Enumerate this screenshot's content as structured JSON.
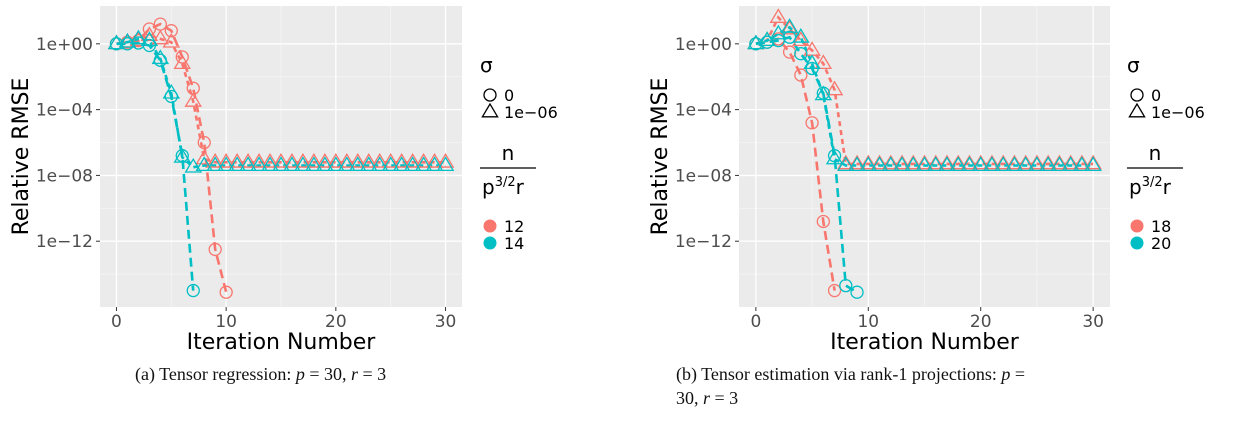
{
  "chart_data": [
    {
      "type": "line",
      "caption": "(a) Tensor regression: p = 30, r = 3",
      "xlabel": "Iteration Number",
      "ylabel": "Relative RMSE",
      "x_ticks": [
        "0",
        "10",
        "20",
        "30"
      ],
      "y_ticks": [
        "1e+00",
        "1e−04",
        "1e−08",
        "1e−12"
      ],
      "y_scale": "log10",
      "xlim": [
        -1.5,
        31.5
      ],
      "ylim_log10": [
        -16.0,
        2.3
      ],
      "grid": true,
      "background": "#ebebeb",
      "legend_shape": {
        "title": "σ",
        "entries": [
          "0",
          "1e−06"
        ]
      },
      "legend_color": {
        "title_num": "n",
        "title_den_base": "p",
        "title_den_sup": "3/2",
        "title_den_tail": "r",
        "entries": [
          "12",
          "14"
        ]
      },
      "series": [
        {
          "name": "12",
          "sigma": "0",
          "color": "#f8766d",
          "marker": "circle",
          "x": [
            0,
            1,
            2,
            3,
            4,
            5,
            6,
            7,
            8,
            9,
            10
          ],
          "log10_y": [
            0.0,
            0.1,
            0.2,
            0.9,
            1.2,
            0.8,
            -0.8,
            -2.7,
            -6.0,
            -12.5,
            -15.1
          ]
        },
        {
          "name": "12",
          "sigma": "1e−06",
          "color": "#f8766d",
          "marker": "triangle",
          "x": [
            0,
            1,
            2,
            3,
            4,
            5,
            6,
            7,
            8,
            9,
            10,
            11,
            12,
            13,
            14,
            15,
            16,
            17,
            18,
            19,
            20,
            21,
            22,
            23,
            24,
            25,
            26,
            27,
            28,
            29,
            30
          ],
          "log10_y": [
            0.0,
            0.1,
            0.2,
            0.5,
            0.3,
            0.1,
            -1.2,
            -3.5,
            -7.0,
            -7.2,
            -7.2,
            -7.2,
            -7.2,
            -7.2,
            -7.2,
            -7.2,
            -7.2,
            -7.2,
            -7.2,
            -7.2,
            -7.2,
            -7.2,
            -7.2,
            -7.2,
            -7.2,
            -7.2,
            -7.2,
            -7.2,
            -7.2,
            -7.2,
            -7.2
          ]
        },
        {
          "name": "14",
          "sigma": "0",
          "color": "#00bfc4",
          "marker": "circle",
          "x": [
            0,
            1,
            2,
            3,
            4,
            5,
            6,
            7
          ],
          "log10_y": [
            0.0,
            0.0,
            0.05,
            -0.1,
            -1.0,
            -3.2,
            -6.8,
            -15.0
          ]
        },
        {
          "name": "14",
          "sigma": "1e−06",
          "color": "#00bfc4",
          "marker": "triangle",
          "x": [
            0,
            1,
            2,
            3,
            4,
            5,
            6,
            7,
            8,
            9,
            10,
            11,
            12,
            13,
            14,
            15,
            16,
            17,
            18,
            19,
            20,
            21,
            22,
            23,
            24,
            25,
            26,
            27,
            28,
            29,
            30
          ],
          "log10_y": [
            0.0,
            0.1,
            0.3,
            0.2,
            -0.9,
            -3.0,
            -6.9,
            -7.5,
            -7.4,
            -7.4,
            -7.4,
            -7.4,
            -7.4,
            -7.4,
            -7.4,
            -7.4,
            -7.4,
            -7.4,
            -7.4,
            -7.4,
            -7.4,
            -7.4,
            -7.4,
            -7.4,
            -7.4,
            -7.4,
            -7.4,
            -7.4,
            -7.4,
            -7.4,
            -7.4
          ]
        }
      ]
    },
    {
      "type": "line",
      "caption": "(b) Tensor estimation via rank-1 projections: p = 30, r = 3",
      "xlabel": "Iteration Number",
      "ylabel": "Relative RMSE",
      "x_ticks": [
        "0",
        "10",
        "20",
        "30"
      ],
      "y_ticks": [
        "1e+00",
        "1e−04",
        "1e−08",
        "1e−12"
      ],
      "y_scale": "log10",
      "xlim": [
        -1.5,
        31.5
      ],
      "ylim_log10": [
        -16.0,
        2.3
      ],
      "grid": true,
      "background": "#ebebeb",
      "legend_shape": {
        "title": "σ",
        "entries": [
          "0",
          "1e−06"
        ]
      },
      "legend_color": {
        "title_num": "n",
        "title_den_base": "p",
        "title_den_sup": "3/2",
        "title_den_tail": "r",
        "entries": [
          "18",
          "20"
        ]
      },
      "series": [
        {
          "name": "18",
          "sigma": "0",
          "color": "#f8766d",
          "marker": "circle",
          "x": [
            0,
            1,
            2,
            3,
            4,
            5,
            6,
            7
          ],
          "log10_y": [
            0.0,
            0.1,
            0.3,
            -0.5,
            -1.9,
            -4.8,
            -10.8,
            -15.0
          ]
        },
        {
          "name": "18",
          "sigma": "1e−06",
          "color": "#f8766d",
          "marker": "triangle",
          "x": [
            0,
            1,
            2,
            3,
            4,
            5,
            6,
            7,
            8,
            9,
            10,
            11,
            12,
            13,
            14,
            15,
            16,
            17,
            18,
            19,
            20,
            21,
            22,
            23,
            24,
            25,
            26,
            27,
            28,
            29,
            30
          ],
          "log10_y": [
            0.0,
            0.2,
            1.6,
            0.9,
            0.2,
            -0.4,
            -1.2,
            -2.8,
            -7.3,
            -7.3,
            -7.3,
            -7.3,
            -7.3,
            -7.3,
            -7.3,
            -7.3,
            -7.3,
            -7.3,
            -7.3,
            -7.3,
            -7.3,
            -7.3,
            -7.3,
            -7.3,
            -7.3,
            -7.3,
            -7.3,
            -7.3,
            -7.3,
            -7.3,
            -7.3
          ]
        },
        {
          "name": "20",
          "sigma": "0",
          "color": "#00bfc4",
          "marker": "circle",
          "x": [
            0,
            1,
            2,
            3,
            4,
            5,
            6,
            7,
            8,
            9
          ],
          "log10_y": [
            0.0,
            0.1,
            0.2,
            0.4,
            -0.6,
            -1.5,
            -3.0,
            -6.8,
            -14.7,
            -15.1
          ]
        },
        {
          "name": "20",
          "sigma": "1e−06",
          "color": "#00bfc4",
          "marker": "triangle",
          "x": [
            0,
            1,
            2,
            3,
            4,
            5,
            6,
            7,
            8,
            9,
            10,
            11,
            12,
            13,
            14,
            15,
            16,
            17,
            18,
            19,
            20,
            21,
            22,
            23,
            24,
            25,
            26,
            27,
            28,
            29,
            30
          ],
          "log10_y": [
            0.0,
            0.2,
            0.6,
            1.0,
            0.4,
            -1.2,
            -3.1,
            -7.0,
            -7.4,
            -7.4,
            -7.4,
            -7.4,
            -7.4,
            -7.4,
            -7.4,
            -7.4,
            -7.4,
            -7.4,
            -7.4,
            -7.4,
            -7.4,
            -7.4,
            -7.4,
            -7.4,
            -7.4,
            -7.4,
            -7.4,
            -7.4,
            -7.4,
            -7.4,
            -7.4
          ]
        }
      ]
    }
  ]
}
